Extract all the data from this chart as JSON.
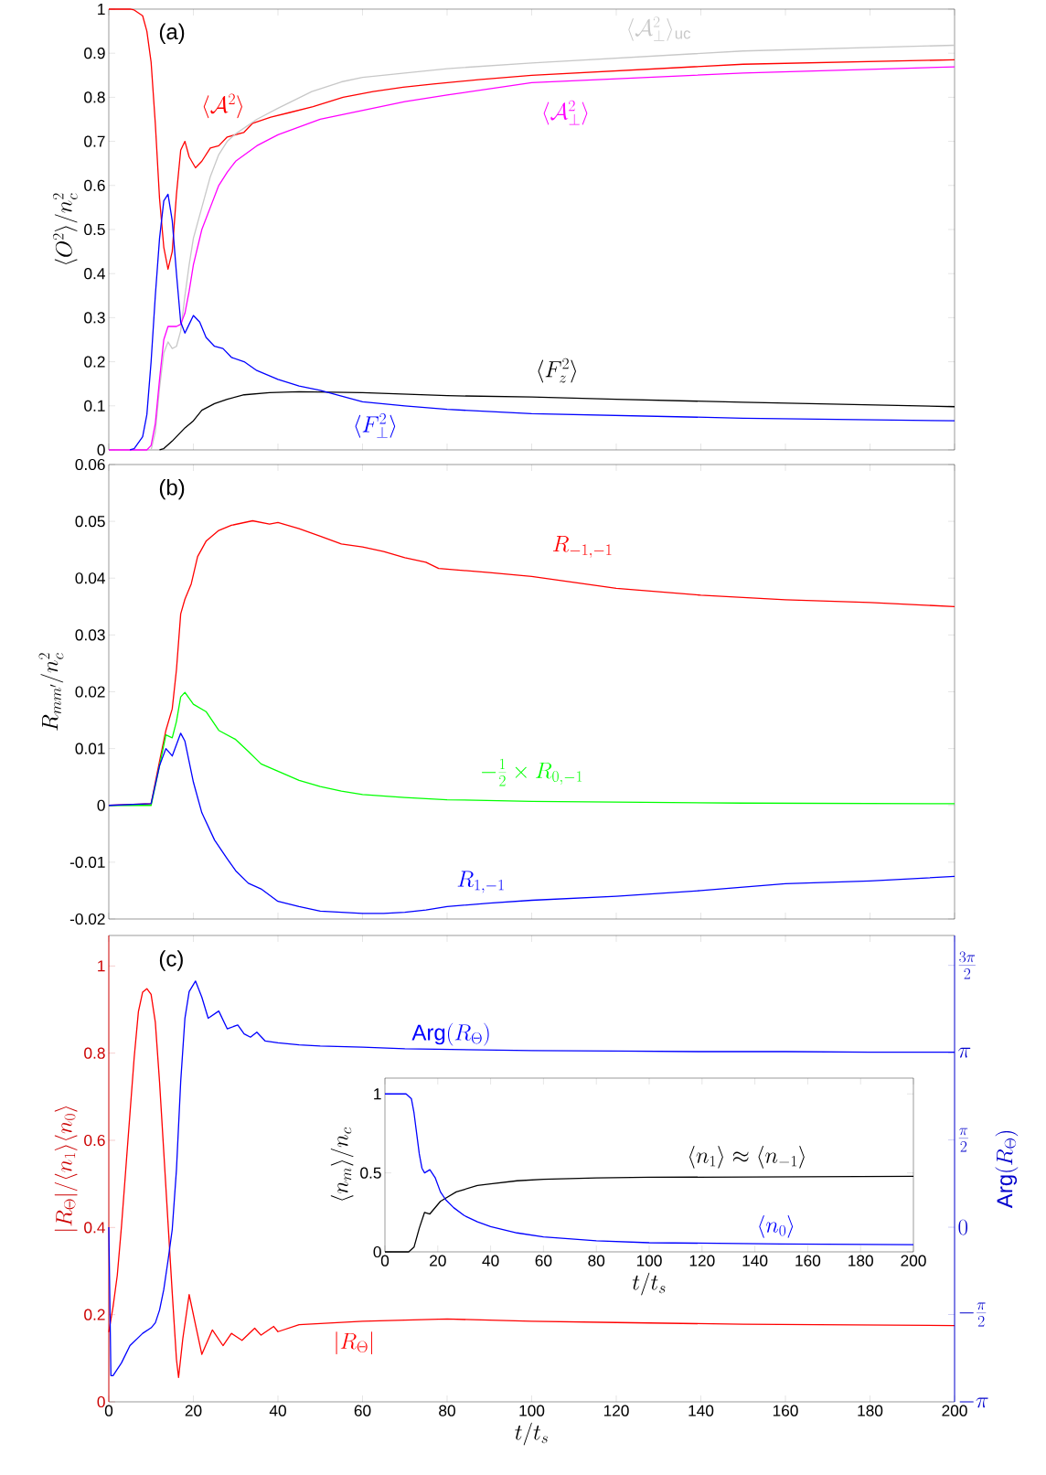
{
  "chart_data": [
    {
      "type": "line",
      "ylabel": "\\langle O^2\\rangle/n_c^2",
      "xlim": [
        0,
        200
      ],
      "xticks": [
        0,
        20,
        40,
        60,
        80,
        100,
        120,
        140,
        160,
        180,
        200
      ],
      "ylim": [
        0,
        1
      ],
      "yticks": [
        0,
        0.1,
        0.2,
        0.3,
        0.4,
        0.5,
        0.6,
        0.7,
        0.8,
        0.9,
        1
      ],
      "tick_labels": "y",
      "annotations": [
        "(a)"
      ],
      "series": [
        {
          "name": "\\langle\\mathcal{A}^2\\rangle",
          "color": "#ff0000",
          "x": [
            0,
            5,
            6,
            8,
            9,
            10,
            11,
            12,
            13,
            14,
            15,
            16,
            17,
            18,
            19,
            20.5,
            22,
            24,
            26,
            28,
            31.9,
            34,
            38.3,
            42.6,
            48.3,
            55.4,
            62.5,
            69.6,
            76.7,
            87.4,
            100,
            150,
            200
          ],
          "values": [
            1,
            1,
            0.998,
            0.985,
            0.95,
            0.88,
            0.74,
            0.57,
            0.46,
            0.41,
            0.45,
            0.58,
            0.68,
            0.7,
            0.665,
            0.64,
            0.655,
            0.685,
            0.69,
            0.71,
            0.72,
            0.741,
            0.755,
            0.765,
            0.779,
            0.8,
            0.813,
            0.823,
            0.83,
            0.84,
            0.85,
            0.875,
            0.885
          ]
        },
        {
          "name": "\\langle\\mathcal{A}_\\perp^2\\rangle_{\\rm uc}",
          "color": "#c8c8c8",
          "x": [
            10,
            11,
            12,
            13,
            14,
            15,
            16,
            17,
            18,
            19,
            20,
            22,
            24,
            26,
            28,
            30,
            35,
            40,
            48,
            55,
            60,
            70,
            80,
            100,
            150,
            200
          ],
          "values": [
            0,
            0.04,
            0.14,
            0.22,
            0.245,
            0.23,
            0.235,
            0.27,
            0.35,
            0.42,
            0.48,
            0.55,
            0.62,
            0.67,
            0.7,
            0.717,
            0.75,
            0.775,
            0.813,
            0.835,
            0.845,
            0.855,
            0.865,
            0.878,
            0.905,
            0.918
          ]
        },
        {
          "name": "\\langle\\mathcal{A}_\\perp^2\\rangle",
          "color": "#ff00ff",
          "x": [
            0,
            9,
            10,
            11,
            12,
            13,
            14,
            16,
            17,
            18,
            19,
            20,
            22,
            24,
            26,
            28,
            30,
            35,
            40,
            50,
            60,
            70,
            80,
            100,
            150,
            200
          ],
          "values": [
            0,
            0,
            0.01,
            0.06,
            0.16,
            0.25,
            0.28,
            0.28,
            0.285,
            0.31,
            0.36,
            0.42,
            0.5,
            0.55,
            0.6,
            0.63,
            0.655,
            0.69,
            0.715,
            0.75,
            0.77,
            0.79,
            0.805,
            0.833,
            0.855,
            0.869
          ]
        },
        {
          "name": "\\langle F_z^2\\rangle",
          "color": "#000000",
          "x": [
            12,
            13,
            15,
            18,
            20,
            22,
            25,
            28,
            32,
            38,
            45,
            60,
            80,
            100,
            120,
            150,
            200
          ],
          "values": [
            0,
            0.003,
            0.02,
            0.05,
            0.066,
            0.09,
            0.105,
            0.115,
            0.125,
            0.13,
            0.132,
            0.13,
            0.123,
            0.12,
            0.115,
            0.108,
            0.098
          ]
        },
        {
          "name": "\\langle F_\\perp^2\\rangle",
          "color": "#0000ff",
          "x": [
            5,
            6,
            8,
            9,
            10,
            11,
            12,
            13,
            14,
            15,
            16,
            17,
            18,
            19,
            20,
            21.5,
            23,
            25,
            27,
            29,
            32,
            35,
            40,
            45,
            50,
            60,
            70,
            80,
            100,
            150,
            200
          ],
          "values": [
            0,
            0.003,
            0.03,
            0.08,
            0.2,
            0.35,
            0.48,
            0.565,
            0.58,
            0.52,
            0.4,
            0.29,
            0.265,
            0.285,
            0.305,
            0.29,
            0.255,
            0.235,
            0.23,
            0.21,
            0.2,
            0.18,
            0.16,
            0.145,
            0.135,
            0.109,
            0.1,
            0.092,
            0.082,
            0.072,
            0.066
          ]
        }
      ]
    },
    {
      "type": "line",
      "ylabel": "R_{mm'}/n_c^2",
      "xlim": [
        0,
        200
      ],
      "xticks": [
        0,
        20,
        40,
        60,
        80,
        100,
        120,
        140,
        160,
        180,
        200
      ],
      "ylim": [
        -0.02,
        0.06
      ],
      "yticks": [
        -0.02,
        -0.01,
        0,
        0.01,
        0.02,
        0.03,
        0.04,
        0.05,
        0.06
      ],
      "tick_labels": "y",
      "annotations": [
        "(b)"
      ],
      "series": [
        {
          "name": "R_{-1,-1}",
          "color": "#ff0000",
          "x": [
            0,
            10,
            12,
            13.5,
            15,
            16,
            17,
            18,
            19.5,
            21,
            23,
            26,
            29,
            34,
            38,
            40,
            45,
            50,
            55,
            60,
            65,
            70,
            75,
            78,
            90,
            100,
            120,
            140,
            160,
            180,
            200
          ],
          "values": [
            0,
            0.0003,
            0.0078,
            0.0132,
            0.017,
            0.0239,
            0.0337,
            0.0363,
            0.039,
            0.0438,
            0.0465,
            0.0484,
            0.0493,
            0.0501,
            0.0495,
            0.0498,
            0.0487,
            0.0474,
            0.046,
            0.0455,
            0.0447,
            0.0436,
            0.0428,
            0.0417,
            0.041,
            0.0403,
            0.0382,
            0.037,
            0.0362,
            0.0357,
            0.035
          ]
        },
        {
          "name": "-\\frac{1}{2}\\times R_{0,-1}",
          "color": "#00ff00",
          "x": [
            0,
            10,
            12,
            13.5,
            15,
            16,
            17,
            18,
            20,
            23,
            26,
            30,
            33,
            36,
            40,
            45,
            50,
            55,
            60,
            70,
            80,
            100,
            150,
            200
          ],
          "values": [
            0,
            0,
            0.007,
            0.0124,
            0.0119,
            0.0148,
            0.0191,
            0.0199,
            0.0178,
            0.0165,
            0.0132,
            0.0116,
            0.0095,
            0.0073,
            0.006,
            0.0044,
            0.0033,
            0.0025,
            0.0019,
            0.0014,
            0.001,
            0.0007,
            0.0004,
            0.0003
          ]
        },
        {
          "name": "R_{1,-1}",
          "color": "#0000ff",
          "x": [
            0,
            10,
            12,
            13.5,
            15,
            17,
            18,
            20,
            22,
            25,
            28,
            30,
            33,
            36,
            40,
            45,
            50,
            55,
            60,
            65,
            70,
            75,
            80,
            90,
            100,
            120,
            140,
            160,
            180,
            200
          ],
          "values": [
            0,
            0.0003,
            0.007,
            0.01,
            0.0087,
            0.0127,
            0.0113,
            0.0041,
            -0.0013,
            -0.0061,
            -0.0094,
            -0.0115,
            -0.0137,
            -0.0147,
            -0.0169,
            -0.0178,
            -0.0186,
            -0.0188,
            -0.019,
            -0.019,
            -0.0188,
            -0.0184,
            -0.0178,
            -0.0172,
            -0.0167,
            -0.016,
            -0.015,
            -0.0138,
            -0.0133,
            -0.0125
          ]
        }
      ]
    },
    {
      "type": "line",
      "xlabel": "t/t_s",
      "ylabel": "|R_\\Theta|/\\langle n_1\\rangle\\langle n_0\\rangle",
      "y2label": "\\mathrm{Arg}(R_\\Theta)",
      "xlim": [
        0,
        200
      ],
      "xticks": [
        0,
        20,
        40,
        60,
        80,
        100,
        120,
        140,
        160,
        180,
        200
      ],
      "ylim": [
        0,
        1.07
      ],
      "yticks": [
        0,
        0.2,
        0.4,
        0.6,
        0.8,
        1
      ],
      "y2lim": [
        -3.14159,
        5.25
      ],
      "y2ticks": [
        {
          "value": -3.14159,
          "label": "-\\pi"
        },
        {
          "value": -1.5708,
          "label": "-\\frac{\\pi}{2}"
        },
        {
          "value": 0,
          "label": "0"
        },
        {
          "value": 1.5708,
          "label": "\\frac{\\pi}{2}"
        },
        {
          "value": 3.14159,
          "label": "\\pi"
        },
        {
          "value": 4.71239,
          "label": "\\frac{3\\pi}{2}"
        }
      ],
      "annotations": [
        "(c)"
      ],
      "series": [
        {
          "name": "|R_\\Theta|",
          "color": "#ff0000",
          "x": [
            0,
            1,
            2,
            3,
            4,
            5,
            6,
            7,
            8,
            9,
            10,
            11,
            12,
            13,
            14,
            15,
            16,
            16.5,
            17.5,
            19,
            20.5,
            22,
            24.5,
            27,
            29,
            31.5,
            34.5,
            36,
            39,
            40,
            45,
            60,
            80,
            100,
            120,
            150,
            200
          ],
          "values": [
            0.16,
            0.218,
            0.29,
            0.403,
            0.532,
            0.661,
            0.79,
            0.895,
            0.94,
            0.948,
            0.935,
            0.871,
            0.734,
            0.573,
            0.411,
            0.25,
            0.097,
            0.056,
            0.145,
            0.246,
            0.177,
            0.109,
            0.165,
            0.129,
            0.157,
            0.141,
            0.169,
            0.153,
            0.173,
            0.161,
            0.177,
            0.185,
            0.19,
            0.185,
            0.182,
            0.178,
            0.175
          ]
        },
        {
          "name": "\\mathrm{Arg}(R_\\Theta)",
          "color": "#0000ff",
          "axis": "y2",
          "x": [
            0,
            0.5,
            1,
            3,
            5,
            8,
            10,
            11,
            12,
            13,
            14,
            15,
            16,
            17,
            18,
            19,
            20.5,
            22,
            23.5,
            26,
            28,
            30.5,
            32,
            33.5,
            35,
            37,
            40,
            45,
            50,
            60,
            70,
            80,
            100,
            120,
            140,
            160,
            180,
            200
          ],
          "values": [
            0,
            -2.67,
            -2.67,
            -2.44,
            -2.13,
            -1.91,
            -1.81,
            -1.72,
            -1.49,
            -1.12,
            -0.6,
            -0.04,
            1.04,
            2.62,
            3.76,
            4.24,
            4.43,
            4.14,
            3.76,
            3.89,
            3.57,
            3.64,
            3.48,
            3.42,
            3.51,
            3.35,
            3.32,
            3.28,
            3.26,
            3.24,
            3.21,
            3.2,
            3.18,
            3.17,
            3.16,
            3.16,
            3.15,
            3.15
          ]
        }
      ]
    },
    {
      "type": "line",
      "xlabel": "t/t_s",
      "ylabel": "\\langle n_m\\rangle/n_c",
      "xlim": [
        0,
        200
      ],
      "xticks": [
        0,
        20,
        40,
        60,
        80,
        100,
        120,
        140,
        160,
        180,
        200
      ],
      "ylim": [
        0,
        1.1
      ],
      "yticks": [
        0,
        0.5,
        1
      ],
      "series": [
        {
          "name": "\\langle n_1\\rangle\\approx\\langle n_{-1}\\rangle",
          "color": "#000000",
          "x": [
            0,
            9,
            11,
            13,
            15,
            17,
            19,
            21,
            23,
            27,
            30,
            35,
            40,
            50,
            60,
            80,
            100,
            150,
            200
          ],
          "values": [
            0,
            0,
            0.03,
            0.15,
            0.25,
            0.24,
            0.28,
            0.32,
            0.34,
            0.38,
            0.395,
            0.42,
            0.43,
            0.45,
            0.46,
            0.468,
            0.472,
            0.475,
            0.478
          ]
        },
        {
          "name": "\\langle n_0\\rangle",
          "color": "#0000ff",
          "x": [
            0,
            8,
            10,
            11,
            12,
            13,
            14,
            15,
            17,
            19,
            21,
            23,
            26,
            30,
            35,
            40,
            50,
            60,
            80,
            100,
            150,
            200
          ],
          "values": [
            1,
            1,
            0.97,
            0.88,
            0.75,
            0.62,
            0.53,
            0.5,
            0.52,
            0.47,
            0.38,
            0.33,
            0.28,
            0.23,
            0.19,
            0.16,
            0.12,
            0.095,
            0.07,
            0.058,
            0.05,
            0.045
          ]
        }
      ]
    }
  ]
}
